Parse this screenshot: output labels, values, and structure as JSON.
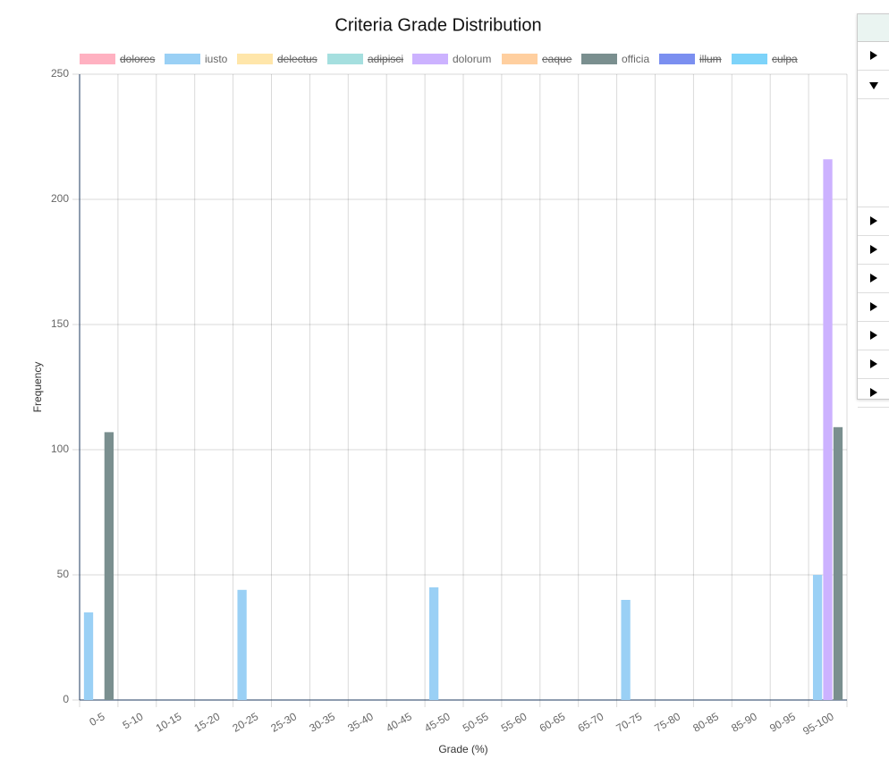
{
  "chart_data": {
    "type": "bar",
    "title": "Criteria Grade Distribution",
    "x_label": "Grade (%)",
    "y_label": "Frequency",
    "categories": [
      "0-5",
      "5-10",
      "10-15",
      "15-20",
      "20-25",
      "25-30",
      "30-35",
      "35-40",
      "40-45",
      "45-50",
      "50-55",
      "55-60",
      "60-65",
      "65-70",
      "70-75",
      "75-80",
      "80-85",
      "85-90",
      "90-95",
      "95-100"
    ],
    "series": [
      {
        "name": "dolores",
        "color": "#ffb1c1",
        "hidden": true
      },
      {
        "name": "iusto",
        "color": "#9ad0f5",
        "values": [
          35,
          0,
          0,
          0,
          44,
          0,
          0,
          0,
          0,
          45,
          0,
          0,
          0,
          0,
          40,
          0,
          0,
          0,
          0,
          50
        ]
      },
      {
        "name": "delectus",
        "color": "#ffe6aa",
        "hidden": true
      },
      {
        "name": "adipisci",
        "color": "#a5dfdf",
        "hidden": true
      },
      {
        "name": "dolorum",
        "color": "#ccb2ff",
        "values": [
          0,
          0,
          0,
          0,
          0,
          0,
          0,
          0,
          0,
          0,
          0,
          0,
          0,
          0,
          0,
          0,
          0,
          0,
          0,
          216
        ]
      },
      {
        "name": "eaque",
        "color": "#ffcf9f",
        "hidden": true
      },
      {
        "name": "officia",
        "color": "#7a8f8f",
        "values": [
          107,
          0,
          0,
          0,
          0,
          0,
          0,
          0,
          0,
          0,
          0,
          0,
          0,
          0,
          0,
          0,
          0,
          0,
          0,
          109
        ]
      },
      {
        "name": "illum",
        "color": "#7b8ff0",
        "hidden": true
      },
      {
        "name": "culpa",
        "color": "#7dd3f9",
        "hidden": true
      }
    ],
    "ylim": [
      0,
      250
    ],
    "yticks": [
      0,
      50,
      100,
      150,
      200,
      250
    ],
    "grid": true,
    "legend": "top"
  }
}
